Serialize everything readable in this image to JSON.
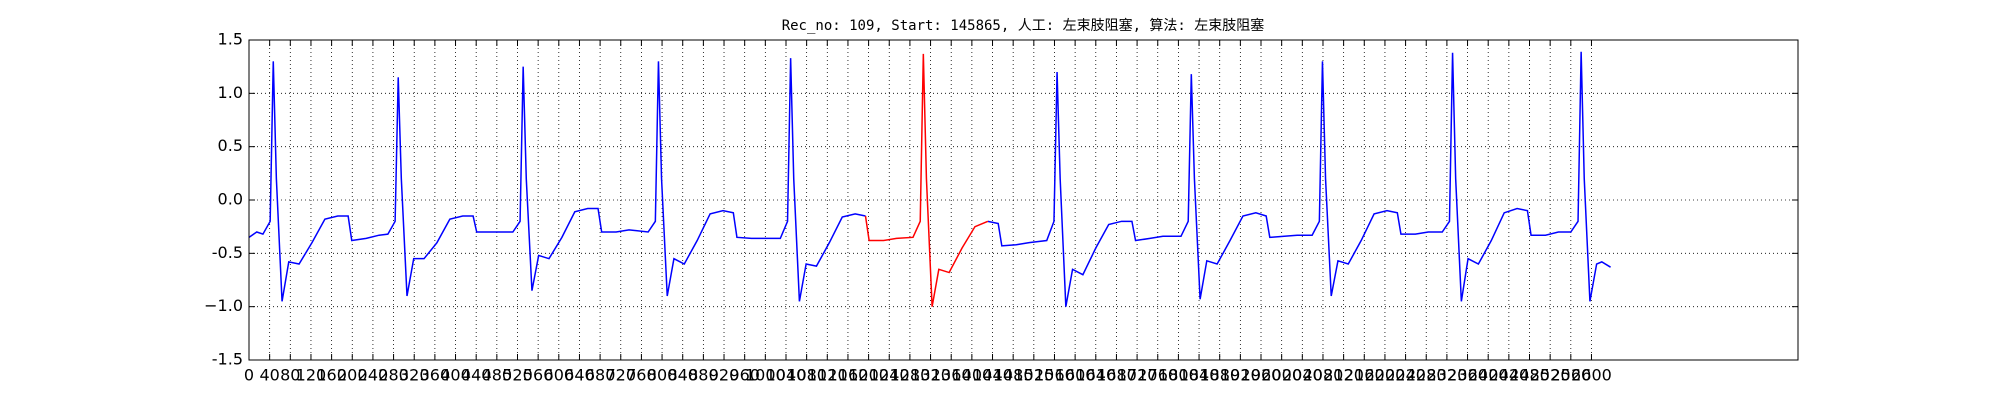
{
  "chart_data": {
    "type": "line",
    "title": "Rec_no: 109, Start: 145865, 人工: 左束肢阻塞, 算法: 左束肢阻塞",
    "x": [
      0,
      15,
      27,
      41,
      47,
      53,
      64,
      77,
      97,
      122,
      147,
      172,
      192,
      199,
      227,
      252,
      269,
      283,
      289,
      295,
      306,
      319,
      339,
      364,
      389,
      414,
      434,
      441,
      469,
      494,
      511,
      525,
      531,
      537,
      548,
      561,
      581,
      606,
      631,
      656,
      676,
      683,
      711,
      736,
      773,
      787,
      793,
      799,
      810,
      823,
      843,
      868,
      893,
      918,
      938,
      945,
      973,
      998,
      1029,
      1043,
      1049,
      1055,
      1066,
      1079,
      1099,
      1124,
      1149,
      1174,
      1194,
      1201,
      1229,
      1254,
      1286,
      1300,
      1306,
      1312,
      1323,
      1336,
      1356,
      1381,
      1406,
      1431,
      1451,
      1458,
      1486,
      1511,
      1545,
      1559,
      1565,
      1571,
      1582,
      1595,
      1615,
      1640,
      1665,
      1690,
      1710,
      1717,
      1745,
      1770,
      1805,
      1819,
      1825,
      1831,
      1842,
      1855,
      1875,
      1900,
      1925,
      1950,
      1970,
      1977,
      2005,
      2030,
      2059,
      2073,
      2079,
      2085,
      2096,
      2109,
      2129,
      2154,
      2179,
      2204,
      2224,
      2231,
      2259,
      2284,
      2311,
      2325,
      2331,
      2337,
      2348,
      2361,
      2381,
      2406,
      2431,
      2456,
      2476,
      2483,
      2511,
      2536,
      2560,
      2574,
      2580,
      2586,
      2597,
      2610,
      2620,
      2637
    ],
    "series": [
      {
        "color": "#0000ff",
        "values": [
          -0.35,
          -0.3,
          -0.32,
          -0.2,
          1.3,
          0.2,
          -0.95,
          -0.58,
          -0.6,
          -0.4,
          -0.18,
          -0.15,
          -0.15,
          -0.38,
          -0.36,
          -0.33,
          -0.32,
          -0.2,
          1.15,
          0.2,
          -0.9,
          -0.55,
          -0.55,
          -0.4,
          -0.18,
          -0.15,
          -0.15,
          -0.3,
          -0.3,
          -0.3,
          -0.3,
          -0.2,
          1.25,
          0.2,
          -0.85,
          -0.52,
          -0.55,
          -0.35,
          -0.11,
          -0.08,
          -0.08,
          -0.3,
          -0.3,
          -0.28,
          -0.3,
          -0.2,
          1.3,
          0.2,
          -0.9,
          -0.55,
          -0.6,
          -0.38,
          -0.13,
          -0.1,
          -0.12,
          -0.35,
          -0.36,
          -0.36,
          -0.36,
          -0.2,
          1.33,
          0.2,
          -0.95,
          -0.6,
          -0.62,
          -0.4,
          -0.16,
          -0.13,
          -0.15,
          null,
          null,
          null,
          null,
          null,
          null,
          null,
          null,
          null,
          null,
          null,
          null,
          -0.2,
          -0.22,
          -0.43,
          -0.42,
          -0.4,
          -0.38,
          -0.2,
          1.2,
          0.2,
          -1.0,
          -0.65,
          -0.7,
          -0.45,
          -0.23,
          -0.2,
          -0.2,
          -0.38,
          -0.36,
          -0.34,
          -0.34,
          -0.2,
          1.18,
          0.2,
          -0.93,
          -0.57,
          -0.6,
          -0.38,
          -0.15,
          -0.12,
          -0.15,
          -0.35,
          -0.34,
          -0.33,
          -0.33,
          -0.2,
          1.3,
          0.2,
          -0.9,
          -0.57,
          -0.6,
          -0.38,
          -0.13,
          -0.1,
          -0.12,
          -0.32,
          -0.32,
          -0.3,
          -0.3,
          -0.2,
          1.38,
          0.2,
          -0.95,
          -0.55,
          -0.6,
          -0.38,
          -0.12,
          -0.08,
          -0.1,
          -0.33,
          -0.33,
          -0.3,
          -0.3,
          -0.2,
          1.39,
          0.2,
          -0.95,
          -0.6,
          -0.58,
          -0.63
        ]
      },
      {
        "color": "#ff0000",
        "values": [
          null,
          null,
          null,
          null,
          null,
          null,
          null,
          null,
          null,
          null,
          null,
          null,
          null,
          null,
          null,
          null,
          null,
          null,
          null,
          null,
          null,
          null,
          null,
          null,
          null,
          null,
          null,
          null,
          null,
          null,
          null,
          null,
          null,
          null,
          null,
          null,
          null,
          null,
          null,
          null,
          null,
          null,
          null,
          null,
          null,
          null,
          null,
          null,
          null,
          null,
          null,
          null,
          null,
          null,
          null,
          null,
          null,
          null,
          null,
          null,
          null,
          null,
          null,
          null,
          null,
          null,
          null,
          null,
          -0.15,
          -0.38,
          -0.38,
          -0.36,
          -0.35,
          -0.2,
          1.37,
          0.2,
          -1.0,
          -0.65,
          -0.68,
          -0.45,
          -0.25,
          -0.2,
          null,
          null,
          null,
          null,
          null,
          null,
          null,
          null,
          null,
          null,
          null,
          null,
          null,
          null,
          null,
          null,
          null,
          null,
          null,
          null,
          null,
          null,
          null,
          null,
          null,
          null,
          null,
          null,
          null,
          null,
          null,
          null,
          null,
          null,
          null,
          null,
          null,
          null,
          null,
          null,
          null,
          null,
          null,
          null,
          null,
          null,
          null,
          null,
          null,
          null,
          null,
          null,
          null,
          null,
          null,
          null,
          null,
          null,
          null,
          null,
          null,
          null,
          null,
          null,
          null,
          null,
          null,
          null
        ]
      }
    ],
    "xlim": [
      0,
      3000
    ],
    "xticks": [
      0,
      40,
      80,
      120,
      160,
      200,
      240,
      280,
      320,
      360,
      400,
      440,
      480,
      520,
      560,
      600,
      640,
      680,
      720,
      760,
      800,
      840,
      880,
      920,
      960,
      1000,
      1040,
      1080,
      1120,
      1160,
      1200,
      1240,
      1280,
      1320,
      1360,
      1400,
      1440,
      1480,
      1520,
      1560,
      1600,
      1640,
      1680,
      1720,
      1760,
      1800,
      1840,
      1880,
      1920,
      1960,
      2000,
      2040,
      2080,
      2120,
      2160,
      2200,
      2240,
      2280,
      2320,
      2360,
      2400,
      2440,
      2480,
      2520,
      2560,
      2600
    ],
    "ylim": [
      -1.5,
      1.5
    ],
    "yticks": [
      -1.5,
      {
        "value": -1,
        "label": "−1.0"
      },
      -0.5,
      {
        "value": 0,
        "label": "0.0"
      },
      0.5,
      {
        "value": 1,
        "label": "1.0"
      },
      1.5
    ],
    "grid": true
  }
}
